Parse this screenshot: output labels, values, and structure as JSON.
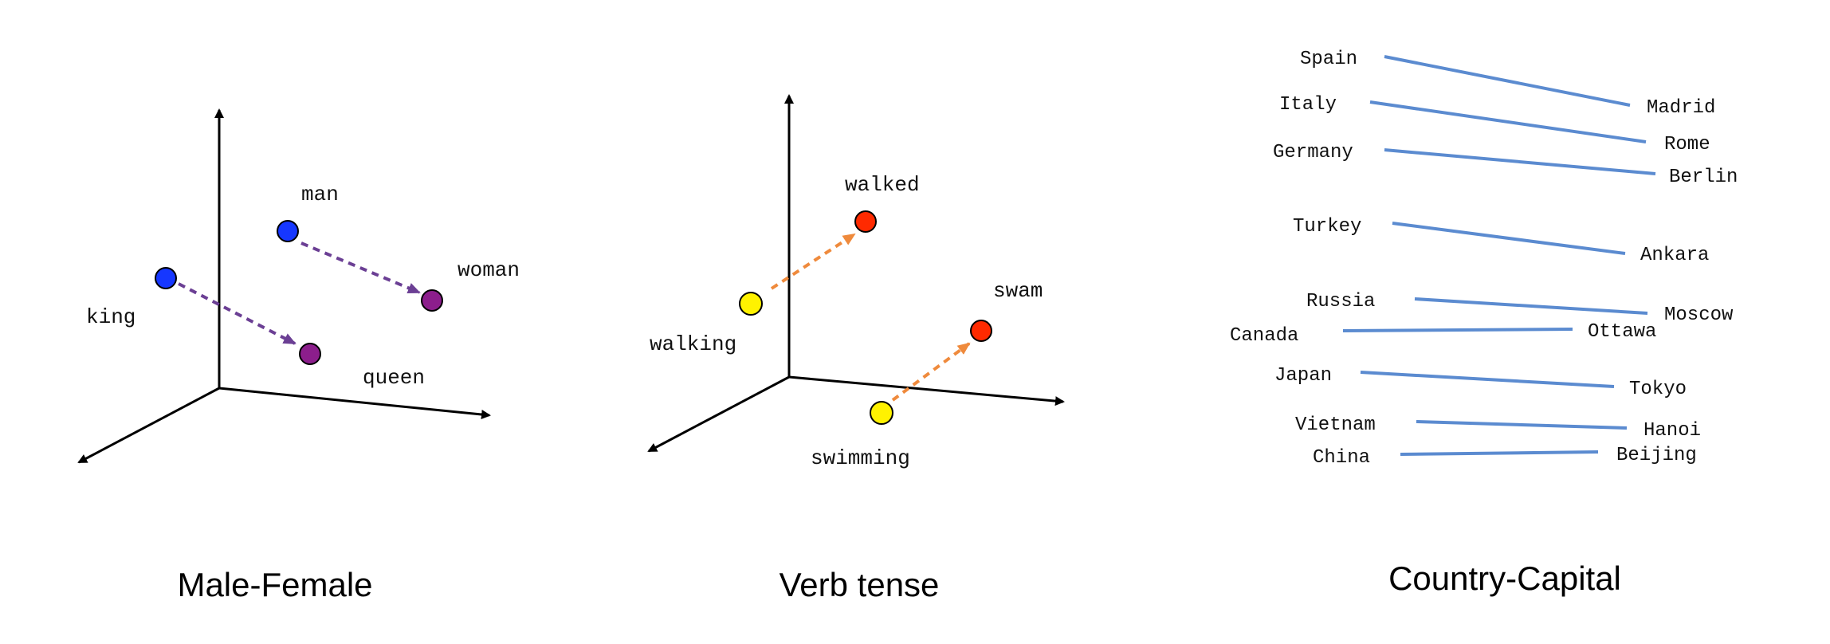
{
  "panels": {
    "male_female": {
      "caption": "Male-Female",
      "points": [
        {
          "label": "man",
          "color": "#1637ff"
        },
        {
          "label": "woman",
          "color": "#8c1e8c"
        },
        {
          "label": "king",
          "color": "#1637ff"
        },
        {
          "label": "queen",
          "color": "#8c1e8c"
        }
      ],
      "arrow_color": "#6b3f94"
    },
    "verb_tense": {
      "caption": "Verb tense",
      "points": [
        {
          "label": "walked",
          "color": "#ff2a00"
        },
        {
          "label": "walking",
          "color": "#fff200"
        },
        {
          "label": "swam",
          "color": "#ff2a00"
        },
        {
          "label": "swimming",
          "color": "#fff200"
        }
      ],
      "arrow_color": "#ef8a3c"
    },
    "country_capital": {
      "caption": "Country-Capital",
      "line_color": "#5b8bd0",
      "pairs": [
        {
          "country": "Spain",
          "capital": "Madrid"
        },
        {
          "country": "Italy",
          "capital": "Rome"
        },
        {
          "country": "Germany",
          "capital": "Berlin"
        },
        {
          "country": "Turkey",
          "capital": "Ankara"
        },
        {
          "country": "Russia",
          "capital": "Moscow"
        },
        {
          "country": "Canada",
          "capital": "Ottawa"
        },
        {
          "country": "Japan",
          "capital": "Tokyo"
        },
        {
          "country": "Vietnam",
          "capital": "Hanoi"
        },
        {
          "country": "China",
          "capital": "Beijing"
        }
      ]
    }
  }
}
